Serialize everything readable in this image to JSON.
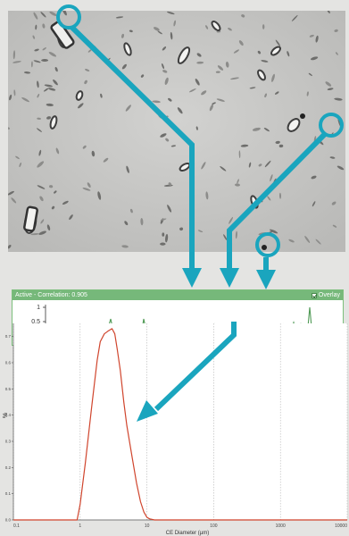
{
  "correlation_panel": {
    "header_label": "Active - Correlation: 0.905",
    "overlay_label": "Overlay",
    "overlay_checked": true,
    "y_ticks": [
      "1",
      "0.5",
      "0"
    ]
  },
  "colors": {
    "accent_teal": "#1aa5be",
    "panel_green": "#76b87a",
    "signal_green": "#4f9a55",
    "distribution_red": "#d0452d"
  },
  "chart_data": {
    "type": "line",
    "xlabel": "CE Diameter (µm)",
    "ylabel": "%",
    "x_scale": "log",
    "xlim": [
      0.1,
      10000
    ],
    "ylim": [
      0,
      0.75
    ],
    "x_ticks": [
      "0.1",
      "1",
      "10",
      "100",
      "1000",
      "10000"
    ],
    "y_ticks": [
      "0.0",
      "0.1",
      "0.2",
      "0.3",
      "0.4",
      "0.5",
      "0.6",
      "0.7"
    ],
    "grid": true,
    "series": [
      {
        "color": "#d0452d",
        "x": [
          0.1,
          0.9,
          1.0,
          1.2,
          1.5,
          1.8,
          2.0,
          2.3,
          2.6,
          3.0,
          3.3,
          3.6,
          4.0,
          4.5,
          5.0,
          6.0,
          7.0,
          8.0,
          9.0,
          10.0,
          11.0,
          13.0,
          10000
        ],
        "y": [
          0.0,
          0.0,
          0.06,
          0.22,
          0.44,
          0.61,
          0.68,
          0.71,
          0.72,
          0.73,
          0.71,
          0.65,
          0.57,
          0.45,
          0.36,
          0.24,
          0.14,
          0.07,
          0.03,
          0.01,
          0.004,
          0.0,
          0.0
        ]
      }
    ]
  }
}
